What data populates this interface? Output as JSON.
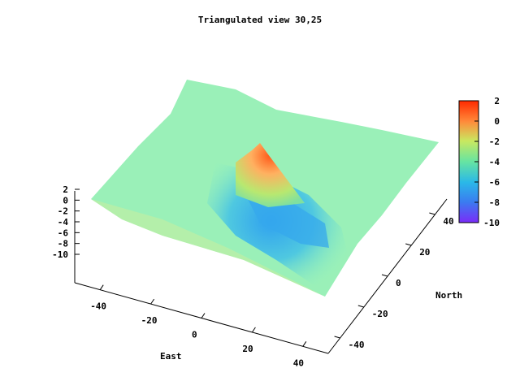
{
  "chart_data": {
    "type": "surface",
    "title": "Triangulated view 30,25",
    "xlabel": "East",
    "ylabel": "North",
    "x_ticks": [
      -40,
      -20,
      0,
      20,
      40
    ],
    "y_ticks": [
      -40,
      -20,
      0,
      20,
      40
    ],
    "z_ticks": [
      2,
      0,
      -2,
      -4,
      -6,
      -8,
      -10
    ],
    "z_range": [
      -10,
      2
    ],
    "view": "30,25",
    "colorbar": {
      "ticks": [
        2,
        0,
        -2,
        -4,
        -6,
        -8,
        -10
      ],
      "colors": [
        "#ff2a00",
        "#ff8a3a",
        "#c9e860",
        "#66e4a2",
        "#2ab8e8",
        "#3a7cf0",
        "#7a2cf8"
      ]
    },
    "surface_description_values": {
      "peak_height": 1,
      "plateau_height": -2.5,
      "trough_height": -7
    }
  }
}
